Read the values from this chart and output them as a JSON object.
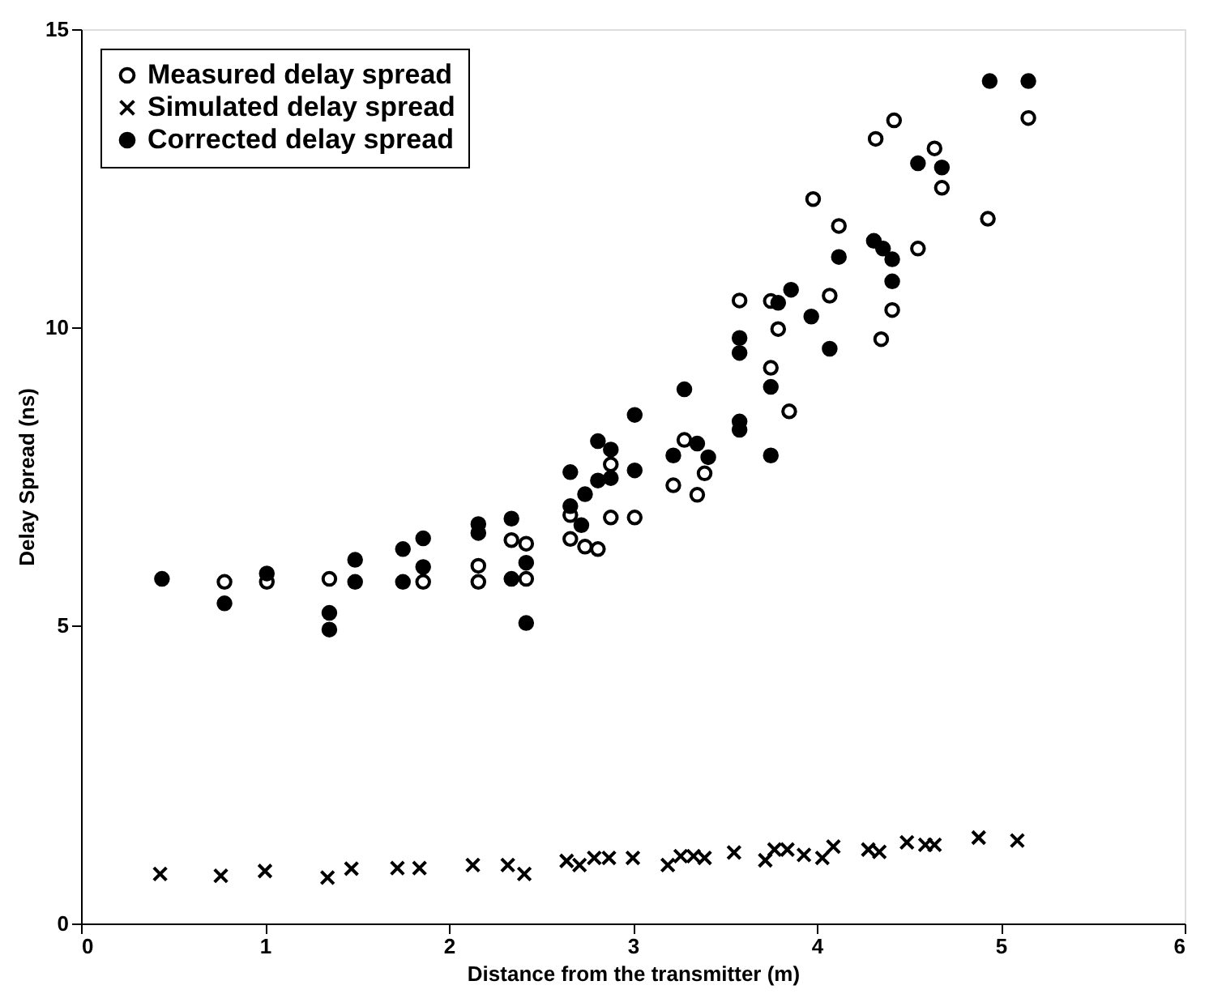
{
  "chart_data": {
    "type": "scatter",
    "xlabel": "Distance from the transmitter (m)",
    "ylabel": "Delay Spread (ns)",
    "xlim": [
      0,
      6
    ],
    "ylim": [
      0,
      15
    ],
    "xticks": [
      0,
      1,
      2,
      3,
      4,
      5,
      6
    ],
    "yticks": [
      0,
      5,
      10,
      15
    ],
    "grid": false,
    "legend": "top left",
    "series": [
      {
        "name": "Measured delay spread",
        "color": "#000000",
        "marker": "circle",
        "x": [
          0.78,
          1.01,
          1.35,
          1.86,
          2.16,
          2.16,
          2.34,
          2.42,
          2.42,
          2.66,
          2.66,
          2.74,
          2.81,
          2.88,
          2.88,
          3.01,
          3.22,
          3.28,
          3.35,
          3.39,
          3.58,
          3.75,
          3.75,
          3.79,
          3.85,
          3.98,
          4.07,
          4.12,
          4.32,
          4.35,
          4.41,
          4.42,
          4.55,
          4.64,
          4.68,
          4.93,
          5.15
        ],
        "values": [
          5.73,
          5.73,
          5.78,
          5.73,
          6.0,
          5.73,
          6.43,
          6.37,
          5.78,
          6.85,
          6.45,
          6.32,
          6.28,
          7.7,
          6.81,
          6.81,
          7.35,
          8.11,
          7.19,
          7.55,
          10.45,
          10.44,
          9.32,
          9.97,
          8.59,
          12.15,
          10.53,
          11.7,
          13.16,
          9.8,
          10.29,
          13.47,
          11.32,
          13.0,
          12.34,
          11.82,
          13.51
        ]
      },
      {
        "name": "Simulated delay spread",
        "color": "#000000",
        "marker": "cross",
        "x": [
          0.43,
          0.76,
          1.0,
          1.34,
          1.47,
          1.72,
          1.84,
          2.13,
          2.32,
          2.41,
          2.64,
          2.71,
          2.79,
          2.87,
          3.0,
          3.19,
          3.26,
          3.33,
          3.39,
          3.55,
          3.72,
          3.77,
          3.84,
          3.93,
          4.03,
          4.09,
          4.28,
          4.34,
          4.49,
          4.59,
          4.64,
          4.88,
          5.09
        ],
        "values": [
          0.83,
          0.8,
          0.88,
          0.77,
          0.92,
          0.93,
          0.93,
          0.98,
          0.98,
          0.83,
          1.05,
          0.98,
          1.1,
          1.1,
          1.1,
          0.98,
          1.13,
          1.13,
          1.1,
          1.19,
          1.06,
          1.24,
          1.24,
          1.15,
          1.1,
          1.29,
          1.24,
          1.2,
          1.36,
          1.32,
          1.32,
          1.44,
          1.39
        ]
      },
      {
        "name": "Corrected delay spread",
        "color": "#000000",
        "marker": "circle",
        "x": [
          0.44,
          0.78,
          1.01,
          1.35,
          1.35,
          1.49,
          1.49,
          1.75,
          1.75,
          1.86,
          1.86,
          2.16,
          2.16,
          2.34,
          2.34,
          2.42,
          2.42,
          2.66,
          2.66,
          2.72,
          2.74,
          2.81,
          2.81,
          2.88,
          2.88,
          3.01,
          3.01,
          3.22,
          3.28,
          3.35,
          3.41,
          3.58,
          3.58,
          3.58,
          3.58,
          3.75,
          3.75,
          3.79,
          3.86,
          3.97,
          4.07,
          4.12,
          4.31,
          4.36,
          4.41,
          4.41,
          4.55,
          4.68,
          4.94,
          5.15
        ],
        "values": [
          5.78,
          5.37,
          5.87,
          5.21,
          4.93,
          6.1,
          5.73,
          6.28,
          5.73,
          6.46,
          5.98,
          6.7,
          6.55,
          6.79,
          5.78,
          6.05,
          5.04,
          7.57,
          7.0,
          6.68,
          7.2,
          8.09,
          7.43,
          7.95,
          7.47,
          8.53,
          7.6,
          7.85,
          8.96,
          8.05,
          7.82,
          9.82,
          9.57,
          8.42,
          8.28,
          9.0,
          7.85,
          10.41,
          10.63,
          10.18,
          9.64,
          11.18,
          11.45,
          11.32,
          11.14,
          10.77,
          12.75,
          12.68,
          14.13,
          14.13
        ]
      }
    ]
  }
}
